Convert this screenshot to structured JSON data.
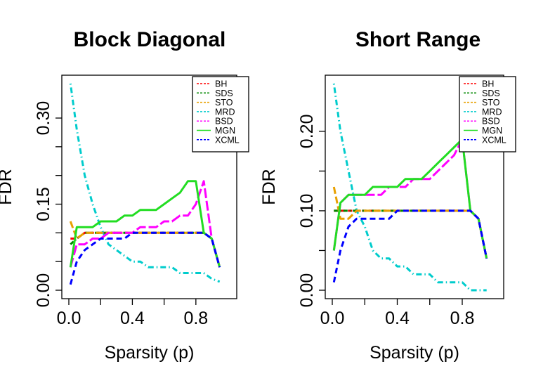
{
  "chart_data": [
    {
      "type": "line",
      "title": "Block Diagonal",
      "xlabel": "Sparsity (p)",
      "ylabel": "FDR",
      "xlim": [
        0,
        0.96
      ],
      "ylim": [
        0,
        0.36
      ],
      "x_ticks": [
        0.0,
        0.2,
        0.4,
        0.6,
        0.8
      ],
      "x_tick_labels": [
        "0.0",
        "",
        "0.4",
        "",
        "0.8"
      ],
      "y_ticks": [
        0.0,
        0.05,
        0.1,
        0.15,
        0.2,
        0.25,
        0.3
      ],
      "y_tick_labels": [
        "0.00",
        "",
        "",
        "0.15",
        "",
        "",
        "0.30"
      ],
      "x": [
        0.01,
        0.05,
        0.1,
        0.15,
        0.2,
        0.25,
        0.3,
        0.35,
        0.4,
        0.45,
        0.5,
        0.55,
        0.6,
        0.65,
        0.7,
        0.75,
        0.8,
        0.85,
        0.9,
        0.95
      ],
      "series": [
        {
          "name": "BH",
          "values": [
            0.09,
            0.09,
            0.1,
            0.1,
            0.1,
            0.1,
            0.1,
            0.1,
            0.1,
            0.1,
            0.1,
            0.1,
            0.1,
            0.1,
            0.1,
            0.1,
            0.1,
            0.1,
            0.09,
            0.04
          ]
        },
        {
          "name": "SDS",
          "values": [
            0.08,
            0.09,
            0.1,
            0.1,
            0.1,
            0.1,
            0.1,
            0.1,
            0.1,
            0.1,
            0.1,
            0.1,
            0.1,
            0.1,
            0.1,
            0.1,
            0.1,
            0.1,
            0.09,
            0.04
          ]
        },
        {
          "name": "STO",
          "values": [
            0.12,
            0.09,
            0.1,
            0.1,
            0.1,
            0.1,
            0.1,
            0.1,
            0.1,
            0.1,
            0.1,
            0.1,
            0.1,
            0.1,
            0.1,
            0.1,
            0.1,
            0.1,
            0.09,
            0.04
          ]
        },
        {
          "name": "MRD",
          "values": [
            0.36,
            0.28,
            0.2,
            0.15,
            0.11,
            0.08,
            0.07,
            0.06,
            0.05,
            0.05,
            0.04,
            0.04,
            0.04,
            0.04,
            0.03,
            0.03,
            0.03,
            0.03,
            0.02,
            0.015
          ]
        },
        {
          "name": "BSD",
          "values": [
            0.04,
            0.08,
            0.08,
            0.09,
            0.09,
            0.1,
            0.1,
            0.1,
            0.1,
            0.11,
            0.11,
            0.11,
            0.12,
            0.12,
            0.13,
            0.13,
            0.15,
            0.19,
            0.09,
            0.04
          ]
        },
        {
          "name": "MGN",
          "values": [
            0.04,
            0.11,
            0.11,
            0.11,
            0.12,
            0.12,
            0.12,
            0.13,
            0.13,
            0.14,
            0.14,
            0.14,
            0.15,
            0.16,
            0.17,
            0.19,
            0.19,
            0.1,
            0.09,
            0.04
          ]
        },
        {
          "name": "XCML",
          "values": [
            0.01,
            0.05,
            0.07,
            0.08,
            0.09,
            0.09,
            0.09,
            0.09,
            0.1,
            0.1,
            0.1,
            0.1,
            0.1,
            0.1,
            0.1,
            0.1,
            0.1,
            0.1,
            0.09,
            0.04
          ]
        }
      ],
      "legend": {
        "position": "top-right",
        "entries": [
          "BH",
          "SDS",
          "STO",
          "MRD",
          "BSD",
          "MGN",
          "XCML"
        ]
      }
    },
    {
      "type": "line",
      "title": "Short Range",
      "xlabel": "Sparsity (p)",
      "ylabel": "FDR",
      "xlim": [
        0,
        0.96
      ],
      "ylim": [
        0,
        0.26
      ],
      "x_ticks": [
        0.0,
        0.2,
        0.4,
        0.6,
        0.8
      ],
      "x_tick_labels": [
        "0.0",
        "",
        "0.4",
        "",
        "0.8"
      ],
      "y_ticks": [
        0.0,
        0.05,
        0.1,
        0.15,
        0.2
      ],
      "y_tick_labels": [
        "0.00",
        "",
        "0.10",
        "",
        "0.20"
      ],
      "x": [
        0.01,
        0.05,
        0.1,
        0.15,
        0.2,
        0.25,
        0.3,
        0.35,
        0.4,
        0.45,
        0.5,
        0.55,
        0.6,
        0.65,
        0.7,
        0.75,
        0.8,
        0.85,
        0.9,
        0.95
      ],
      "series": [
        {
          "name": "BH",
          "values": [
            0.1,
            0.1,
            0.1,
            0.1,
            0.1,
            0.1,
            0.1,
            0.1,
            0.1,
            0.1,
            0.1,
            0.1,
            0.1,
            0.1,
            0.1,
            0.1,
            0.1,
            0.1,
            0.09,
            0.04
          ]
        },
        {
          "name": "SDS",
          "values": [
            0.1,
            0.1,
            0.1,
            0.1,
            0.1,
            0.1,
            0.1,
            0.1,
            0.1,
            0.1,
            0.1,
            0.1,
            0.1,
            0.1,
            0.1,
            0.1,
            0.1,
            0.1,
            0.09,
            0.04
          ]
        },
        {
          "name": "STO",
          "values": [
            0.13,
            0.09,
            0.09,
            0.1,
            0.1,
            0.1,
            0.1,
            0.1,
            0.1,
            0.1,
            0.1,
            0.1,
            0.1,
            0.1,
            0.1,
            0.1,
            0.1,
            0.1,
            0.09,
            0.04
          ]
        },
        {
          "name": "MRD",
          "values": [
            0.26,
            0.2,
            0.15,
            0.1,
            0.08,
            0.05,
            0.04,
            0.04,
            0.03,
            0.03,
            0.02,
            0.02,
            0.02,
            0.01,
            0.01,
            0.01,
            0.01,
            0.0,
            0.0,
            0.0
          ]
        },
        {
          "name": "BSD",
          "values": [
            0.05,
            0.11,
            0.12,
            0.12,
            0.12,
            0.12,
            0.12,
            0.13,
            0.13,
            0.13,
            0.14,
            0.14,
            0.14,
            0.15,
            0.16,
            0.17,
            0.19,
            0.1,
            0.09,
            0.04
          ]
        },
        {
          "name": "MGN",
          "values": [
            0.05,
            0.11,
            0.12,
            0.12,
            0.12,
            0.13,
            0.13,
            0.13,
            0.13,
            0.14,
            0.14,
            0.14,
            0.15,
            0.16,
            0.17,
            0.18,
            0.19,
            0.1,
            0.09,
            0.04
          ]
        },
        {
          "name": "XCML",
          "values": [
            0.01,
            0.05,
            0.08,
            0.09,
            0.09,
            0.09,
            0.09,
            0.09,
            0.1,
            0.1,
            0.1,
            0.1,
            0.1,
            0.1,
            0.1,
            0.1,
            0.1,
            0.1,
            0.09,
            0.04
          ]
        }
      ],
      "legend": {
        "position": "top-right",
        "entries": [
          "BH",
          "SDS",
          "STO",
          "MRD",
          "BSD",
          "MGN",
          "XCML"
        ]
      }
    }
  ],
  "series_styles": {
    "BH": {
      "color": "#ff0000",
      "dash": "6,4"
    },
    "SDS": {
      "color": "#008800",
      "dash": "6,3,1.5,3"
    },
    "STO": {
      "color": "#e8a000",
      "dash": "10,4"
    },
    "MRD": {
      "color": "#00cccc",
      "dash": "1.5,4,8,4"
    },
    "BSD": {
      "color": "#ff00ff",
      "dash": "14,4"
    },
    "MGN": {
      "color": "#22dd22",
      "dash": "none"
    },
    "XCML": {
      "color": "#0000ff",
      "dash": "8,5"
    }
  }
}
